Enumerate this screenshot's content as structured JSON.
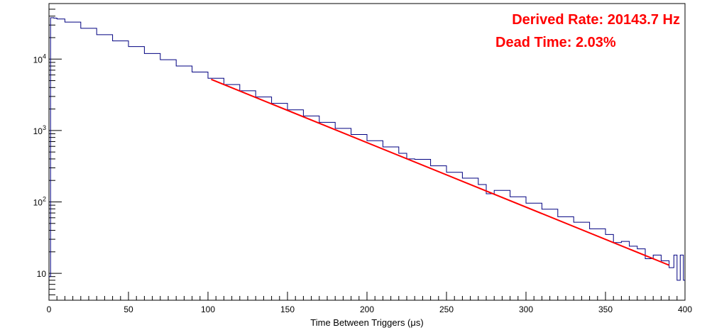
{
  "chart_data": {
    "type": "line",
    "xlabel": "Time Between Triggers (μs)",
    "ylabel": "",
    "xlim": [
      0,
      400
    ],
    "ylim": [
      4.2,
      60000
    ],
    "y_scale": "log",
    "x_ticks": [
      {
        "value": 0,
        "label": "0"
      },
      {
        "value": 50,
        "label": "50"
      },
      {
        "value": 100,
        "label": "100"
      },
      {
        "value": 150,
        "label": "150"
      },
      {
        "value": 200,
        "label": "200"
      },
      {
        "value": 250,
        "label": "250"
      },
      {
        "value": 300,
        "label": "300"
      },
      {
        "value": 350,
        "label": "350"
      },
      {
        "value": 400,
        "label": "400"
      }
    ],
    "y_ticks": [
      {
        "value": 10,
        "base": "10",
        "exp": ""
      },
      {
        "value": 100,
        "base": "10",
        "exp": "2"
      },
      {
        "value": 1000,
        "base": "10",
        "exp": "3"
      },
      {
        "value": 10000,
        "base": "10",
        "exp": "4"
      }
    ],
    "grid": false,
    "series": [
      {
        "name": "",
        "style": "histogram-step",
        "color": "#000080",
        "x": [
          0,
          1,
          3,
          5,
          10,
          20,
          30,
          40,
          50,
          60,
          70,
          80,
          90,
          100,
          110,
          120,
          130,
          140,
          150,
          160,
          170,
          180,
          190,
          200,
          210,
          220,
          225,
          230,
          240,
          250,
          260,
          270,
          275,
          280,
          290,
          300,
          310,
          320,
          330,
          340,
          350,
          355,
          360,
          365,
          370,
          375,
          380,
          385,
          390,
          393,
          395,
          397,
          399
        ],
        "y": [
          9,
          38000,
          37500,
          36500,
          33000,
          27000,
          22000,
          18000,
          15000,
          12000,
          9800,
          8000,
          6600,
          5400,
          4400,
          3600,
          2950,
          2400,
          1950,
          1600,
          1300,
          1070,
          880,
          720,
          590,
          480,
          400,
          395,
          320,
          260,
          215,
          175,
          130,
          145,
          118,
          96,
          79,
          62,
          52,
          42,
          35,
          27,
          28,
          24,
          22,
          16,
          18,
          15,
          12,
          18,
          8,
          18,
          8
        ]
      },
      {
        "name": "",
        "style": "fit-line",
        "color": "#ff0000",
        "x": [
          102,
          390
        ],
        "y": [
          5200,
          13
        ]
      }
    ],
    "annotations": [
      {
        "text": "Derived Rate: 20143.7 Hz",
        "color": "#ff0000",
        "position": "top-right"
      },
      {
        "text": "Dead Time: 2.03%",
        "color": "#ff0000",
        "position": "top-right"
      }
    ]
  }
}
